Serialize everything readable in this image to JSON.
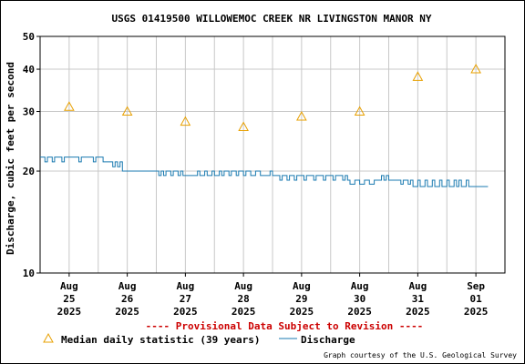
{
  "chart_data": {
    "type": "line",
    "title": "USGS 01419500 WILLOWEMOC CREEK NR LIVINGSTON MANOR NY",
    "ylabel": "Discharge, cubic feet per second",
    "xlabel": "",
    "yscale": "log",
    "ylim": [
      10,
      50
    ],
    "yticks": [
      10,
      20,
      30,
      40,
      50
    ],
    "xlim": [
      "2025-08-24T12:00",
      "2025-09-01T12:00"
    ],
    "xticks": [
      {
        "date": "2025-08-25",
        "lines": [
          "Aug",
          "25",
          "2025"
        ]
      },
      {
        "date": "2025-08-26",
        "lines": [
          "Aug",
          "26",
          "2025"
        ]
      },
      {
        "date": "2025-08-27",
        "lines": [
          "Aug",
          "27",
          "2025"
        ]
      },
      {
        "date": "2025-08-28",
        "lines": [
          "Aug",
          "28",
          "2025"
        ]
      },
      {
        "date": "2025-08-29",
        "lines": [
          "Aug",
          "29",
          "2025"
        ]
      },
      {
        "date": "2025-08-30",
        "lines": [
          "Aug",
          "30",
          "2025"
        ]
      },
      {
        "date": "2025-08-31",
        "lines": [
          "Aug",
          "31",
          "2025"
        ]
      },
      {
        "date": "2025-09-01",
        "lines": [
          "Sep",
          "01",
          "2025"
        ]
      }
    ],
    "grid": true,
    "series": [
      {
        "name": "Median daily statistic (39 years)",
        "kind": "marker-triangle",
        "color": "#e8a000",
        "points": [
          {
            "x": "2025-08-25",
            "y": 31
          },
          {
            "x": "2025-08-26",
            "y": 30
          },
          {
            "x": "2025-08-27",
            "y": 28
          },
          {
            "x": "2025-08-28",
            "y": 27
          },
          {
            "x": "2025-08-29",
            "y": 29
          },
          {
            "x": "2025-08-30",
            "y": 30
          },
          {
            "x": "2025-08-31",
            "y": 38
          },
          {
            "x": "2025-09-01",
            "y": 40
          }
        ]
      },
      {
        "name": "Discharge",
        "kind": "line",
        "color": "#1a7ab0",
        "points": [
          {
            "x": "2025-08-24T12:00",
            "y": 22
          },
          {
            "x": "2025-08-24T14:00",
            "y": 21.3
          },
          {
            "x": "2025-08-24T15:00",
            "y": 22
          },
          {
            "x": "2025-08-24T17:00",
            "y": 21.3
          },
          {
            "x": "2025-08-24T18:00",
            "y": 22
          },
          {
            "x": "2025-08-24T20:00",
            "y": 22
          },
          {
            "x": "2025-08-24T21:00",
            "y": 21.3
          },
          {
            "x": "2025-08-24T22:00",
            "y": 22
          },
          {
            "x": "2025-08-25T03:00",
            "y": 22
          },
          {
            "x": "2025-08-25T04:00",
            "y": 21.3
          },
          {
            "x": "2025-08-25T05:00",
            "y": 22
          },
          {
            "x": "2025-08-25T09:00",
            "y": 22
          },
          {
            "x": "2025-08-25T10:00",
            "y": 21.3
          },
          {
            "x": "2025-08-25T11:00",
            "y": 22
          },
          {
            "x": "2025-08-25T13:00",
            "y": 22
          },
          {
            "x": "2025-08-25T14:00",
            "y": 21.3
          },
          {
            "x": "2025-08-25T17:00",
            "y": 21.3
          },
          {
            "x": "2025-08-25T18:00",
            "y": 20.6
          },
          {
            "x": "2025-08-25T19:00",
            "y": 21.3
          },
          {
            "x": "2025-08-25T20:00",
            "y": 20.6
          },
          {
            "x": "2025-08-25T21:00",
            "y": 21.3
          },
          {
            "x": "2025-08-25T22:00",
            "y": 20
          },
          {
            "x": "2025-08-26T00:00",
            "y": 20
          },
          {
            "x": "2025-08-26T12:00",
            "y": 20
          },
          {
            "x": "2025-08-26T13:00",
            "y": 19.4
          },
          {
            "x": "2025-08-26T14:00",
            "y": 20
          },
          {
            "x": "2025-08-26T15:00",
            "y": 19.4
          },
          {
            "x": "2025-08-26T16:00",
            "y": 20
          },
          {
            "x": "2025-08-26T18:00",
            "y": 19.4
          },
          {
            "x": "2025-08-26T19:00",
            "y": 20
          },
          {
            "x": "2025-08-26T21:00",
            "y": 19.4
          },
          {
            "x": "2025-08-26T22:00",
            "y": 20
          },
          {
            "x": "2025-08-26T23:00",
            "y": 19.4
          },
          {
            "x": "2025-08-27T00:00",
            "y": 19.4
          },
          {
            "x": "2025-08-27T04:00",
            "y": 19.4
          },
          {
            "x": "2025-08-27T05:00",
            "y": 20
          },
          {
            "x": "2025-08-27T06:00",
            "y": 19.4
          },
          {
            "x": "2025-08-27T08:00",
            "y": 20
          },
          {
            "x": "2025-08-27T09:00",
            "y": 19.4
          },
          {
            "x": "2025-08-27T11:00",
            "y": 20
          },
          {
            "x": "2025-08-27T12:00",
            "y": 19.4
          },
          {
            "x": "2025-08-27T14:00",
            "y": 20
          },
          {
            "x": "2025-08-27T15:00",
            "y": 19.4
          },
          {
            "x": "2025-08-27T16:00",
            "y": 20
          },
          {
            "x": "2025-08-27T18:00",
            "y": 19.4
          },
          {
            "x": "2025-08-27T19:00",
            "y": 20
          },
          {
            "x": "2025-08-27T21:00",
            "y": 19.4
          },
          {
            "x": "2025-08-27T22:00",
            "y": 20
          },
          {
            "x": "2025-08-28T00:00",
            "y": 19.4
          },
          {
            "x": "2025-08-28T01:00",
            "y": 20
          },
          {
            "x": "2025-08-28T03:00",
            "y": 19.4
          },
          {
            "x": "2025-08-28T05:00",
            "y": 20
          },
          {
            "x": "2025-08-28T07:00",
            "y": 19.4
          },
          {
            "x": "2025-08-28T10:00",
            "y": 19.4
          },
          {
            "x": "2025-08-28T11:00",
            "y": 20
          },
          {
            "x": "2025-08-28T12:00",
            "y": 19.4
          },
          {
            "x": "2025-08-28T14:00",
            "y": 19.4
          },
          {
            "x": "2025-08-28T15:00",
            "y": 18.8
          },
          {
            "x": "2025-08-28T16:00",
            "y": 19.4
          },
          {
            "x": "2025-08-28T18:00",
            "y": 18.8
          },
          {
            "x": "2025-08-28T19:00",
            "y": 19.4
          },
          {
            "x": "2025-08-28T21:00",
            "y": 18.8
          },
          {
            "x": "2025-08-28T22:00",
            "y": 19.4
          },
          {
            "x": "2025-08-29T01:00",
            "y": 18.8
          },
          {
            "x": "2025-08-29T02:00",
            "y": 19.4
          },
          {
            "x": "2025-08-29T05:00",
            "y": 18.8
          },
          {
            "x": "2025-08-29T06:00",
            "y": 19.4
          },
          {
            "x": "2025-08-29T09:00",
            "y": 18.8
          },
          {
            "x": "2025-08-29T10:00",
            "y": 19.4
          },
          {
            "x": "2025-08-29T13:00",
            "y": 18.8
          },
          {
            "x": "2025-08-29T14:00",
            "y": 19.4
          },
          {
            "x": "2025-08-29T17:00",
            "y": 18.8
          },
          {
            "x": "2025-08-29T18:00",
            "y": 19.4
          },
          {
            "x": "2025-08-29T19:00",
            "y": 18.8
          },
          {
            "x": "2025-08-29T20:00",
            "y": 18.3
          },
          {
            "x": "2025-08-29T22:00",
            "y": 18.8
          },
          {
            "x": "2025-08-30T00:00",
            "y": 18.3
          },
          {
            "x": "2025-08-30T02:00",
            "y": 18.8
          },
          {
            "x": "2025-08-30T04:00",
            "y": 18.3
          },
          {
            "x": "2025-08-30T06:00",
            "y": 18.8
          },
          {
            "x": "2025-08-30T08:00",
            "y": 18.8
          },
          {
            "x": "2025-08-30T09:00",
            "y": 19.4
          },
          {
            "x": "2025-08-30T10:00",
            "y": 18.8
          },
          {
            "x": "2025-08-30T11:00",
            "y": 19.4
          },
          {
            "x": "2025-08-30T12:00",
            "y": 18.8
          },
          {
            "x": "2025-08-30T16:00",
            "y": 18.8
          },
          {
            "x": "2025-08-30T17:00",
            "y": 18.3
          },
          {
            "x": "2025-08-30T18:00",
            "y": 18.8
          },
          {
            "x": "2025-08-30T20:00",
            "y": 18.3
          },
          {
            "x": "2025-08-30T21:00",
            "y": 18.8
          },
          {
            "x": "2025-08-30T22:00",
            "y": 18
          },
          {
            "x": "2025-08-31T00:00",
            "y": 18.8
          },
          {
            "x": "2025-08-31T01:00",
            "y": 18
          },
          {
            "x": "2025-08-31T03:00",
            "y": 18.8
          },
          {
            "x": "2025-08-31T04:00",
            "y": 18
          },
          {
            "x": "2025-08-31T06:00",
            "y": 18.8
          },
          {
            "x": "2025-08-31T07:00",
            "y": 18
          },
          {
            "x": "2025-08-31T09:00",
            "y": 18.8
          },
          {
            "x": "2025-08-31T10:00",
            "y": 18
          },
          {
            "x": "2025-08-31T12:00",
            "y": 18.8
          },
          {
            "x": "2025-08-31T13:00",
            "y": 18
          },
          {
            "x": "2025-08-31T15:00",
            "y": 18.8
          },
          {
            "x": "2025-08-31T16:00",
            "y": 18
          },
          {
            "x": "2025-08-31T17:00",
            "y": 18.8
          },
          {
            "x": "2025-08-31T18:00",
            "y": 18
          },
          {
            "x": "2025-08-31T19:00",
            "y": 18
          },
          {
            "x": "2025-08-31T20:00",
            "y": 18.8
          },
          {
            "x": "2025-08-31T21:00",
            "y": 18
          },
          {
            "x": "2025-08-31T22:00",
            "y": 18
          },
          {
            "x": "2025-09-01T05:00",
            "y": 18
          }
        ]
      }
    ]
  },
  "provisional_notice": "---- Provisional Data Subject to Revision ----",
  "legend": {
    "median_label": "Median daily statistic (39 years)",
    "discharge_label": "Discharge"
  },
  "credit": "Graph courtesy of the U.S. Geological Survey"
}
